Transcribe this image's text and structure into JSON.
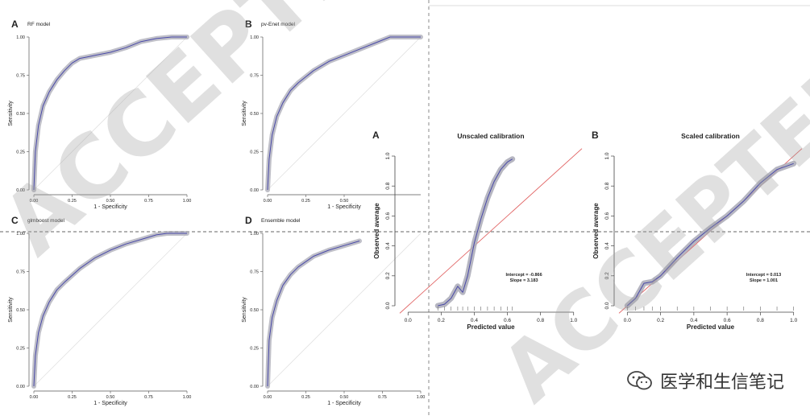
{
  "panels_left": [
    {
      "letter": "A",
      "title": "RF model",
      "xlabel": "1 - Specificity",
      "ylabel": "Sensitivity",
      "xticks": [
        "0.00",
        "0.25",
        "0.50",
        "0.75",
        "1.00"
      ],
      "yticks": [
        "0.00",
        "0.25",
        "0.50",
        "0.75",
        "1.00"
      ]
    },
    {
      "letter": "B",
      "title": "pv-Enet model",
      "xlabel": "1 - Specificity",
      "ylabel": "Sensitivity",
      "xticks": [
        "0.00",
        "0.25",
        "0.50"
      ],
      "yticks": [
        "0.00",
        "0.25",
        "0.50",
        "0.75",
        "1.00"
      ]
    },
    {
      "letter": "C",
      "title": "glmboost model",
      "xlabel": "1 - Specificity",
      "ylabel": "Sensitivity",
      "xticks": [
        "0.00",
        "0.25",
        "0.50",
        "0.75",
        "1.00"
      ],
      "yticks": [
        "0.00",
        "0.25",
        "0.50",
        "0.75",
        "1.00"
      ]
    },
    {
      "letter": "D",
      "title": "Ensemble model",
      "xlabel": "1 - Specificity",
      "ylabel": "Sensitivity",
      "xticks": [
        "0.00",
        "0.25",
        "0.50",
        "0.75",
        "1.00"
      ],
      "yticks": [
        "0.00",
        "0.25",
        "0.50",
        "0.75",
        "1.00"
      ]
    }
  ],
  "panels_right": [
    {
      "letter": "A",
      "title": "Unscaled calibration",
      "xlabel": "Predicted value",
      "ylabel": "Observed average",
      "xticks": [
        "0.0",
        "0.2",
        "0.4",
        "0.6",
        "0.8",
        "1.0"
      ],
      "yticks": [
        "0.0",
        "0.2",
        "0.4",
        "0.6",
        "0.8",
        "1.0"
      ],
      "annotation": [
        "Intercept = -0.866",
        "Slope = 3.183"
      ]
    },
    {
      "letter": "B",
      "title": "Scaled calibration",
      "xlabel": "Predicted value",
      "ylabel": "Observed average",
      "xticks": [
        "0.0",
        "0.2",
        "0.4",
        "0.6",
        "0.8",
        "1.0"
      ],
      "yticks": [
        "0.0",
        "0.2",
        "0.4",
        "0.6",
        "0.8",
        "1.0"
      ],
      "annotation": [
        "Intercept = 0.013",
        "Slope = 1.001"
      ]
    }
  ],
  "watermark": "ACCEPTED",
  "footer_text": "医学和生信笔记",
  "colors": {
    "curve": "#4a4aa8",
    "band": "#a9a9b6",
    "ref": "#e06060",
    "diag": "#e2e2e2",
    "text": "#222222"
  },
  "chart_data": [
    {
      "type": "line",
      "title": "RF model",
      "xlabel": "1 - Specificity",
      "ylabel": "Sensitivity",
      "xlim": [
        0,
        1
      ],
      "ylim": [
        0,
        1
      ],
      "grid": false,
      "series": [
        {
          "x": [
            0,
            0.01,
            0.03,
            0.06,
            0.1,
            0.15,
            0.2,
            0.25,
            0.3,
            0.35,
            0.4,
            0.5,
            0.6,
            0.7,
            0.8,
            0.9,
            1.0
          ],
          "y": [
            0,
            0.25,
            0.42,
            0.55,
            0.64,
            0.72,
            0.78,
            0.83,
            0.86,
            0.87,
            0.88,
            0.9,
            0.93,
            0.97,
            0.99,
            1.0,
            1.0
          ]
        }
      ]
    },
    {
      "type": "line",
      "title": "pv-Enet model",
      "xlabel": "1 - Specificity",
      "ylabel": "Sensitivity",
      "xlim": [
        0,
        1
      ],
      "ylim": [
        0,
        1
      ],
      "grid": false,
      "series": [
        {
          "x": [
            0,
            0.01,
            0.03,
            0.06,
            0.1,
            0.15,
            0.2,
            0.3,
            0.4,
            0.5,
            0.6,
            0.7,
            0.8,
            0.9,
            1.0
          ],
          "y": [
            0,
            0.2,
            0.36,
            0.48,
            0.57,
            0.65,
            0.7,
            0.78,
            0.84,
            0.88,
            0.92,
            0.96,
            1.0,
            1.0,
            1.0
          ]
        }
      ]
    },
    {
      "type": "line",
      "title": "glmboost model",
      "xlabel": "1 - Specificity",
      "ylabel": "Sensitivity",
      "xlim": [
        0,
        1
      ],
      "ylim": [
        0,
        1
      ],
      "grid": false,
      "series": [
        {
          "x": [
            0,
            0.01,
            0.03,
            0.06,
            0.1,
            0.15,
            0.2,
            0.3,
            0.4,
            0.5,
            0.6,
            0.7,
            0.8,
            0.87,
            1.0
          ],
          "y": [
            0,
            0.2,
            0.35,
            0.46,
            0.55,
            0.63,
            0.68,
            0.77,
            0.84,
            0.89,
            0.93,
            0.96,
            0.99,
            1.0,
            1.0
          ]
        }
      ]
    },
    {
      "type": "line",
      "title": "Ensemble model",
      "xlabel": "1 - Specificity",
      "ylabel": "Sensitivity",
      "xlim": [
        0,
        1
      ],
      "ylim": [
        0,
        1
      ],
      "grid": false,
      "series": [
        {
          "x": [
            0,
            0.01,
            0.03,
            0.06,
            0.1,
            0.15,
            0.2,
            0.3,
            0.4,
            0.5,
            0.6
          ],
          "y": [
            0,
            0.3,
            0.45,
            0.56,
            0.66,
            0.73,
            0.78,
            0.85,
            0.89,
            0.92,
            0.95
          ]
        }
      ]
    },
    {
      "type": "line",
      "title": "Unscaled calibration",
      "xlabel": "Predicted value",
      "ylabel": "Observed average",
      "xlim": [
        -0.05,
        1.05
      ],
      "ylim": [
        0,
        1
      ],
      "grid": false,
      "annotations": [
        "Intercept = -0.866",
        "Slope = 3.183"
      ],
      "series": [
        {
          "x": [
            0.18,
            0.22,
            0.26,
            0.3,
            0.33,
            0.36,
            0.4,
            0.44,
            0.48,
            0.52,
            0.56,
            0.6,
            0.63
          ],
          "y": [
            0.0,
            0.01,
            0.05,
            0.13,
            0.09,
            0.2,
            0.42,
            0.58,
            0.72,
            0.83,
            0.91,
            0.96,
            0.98
          ]
        },
        {
          "x": [
            -0.05,
            1.05
          ],
          "y": [
            -0.05,
            1.05
          ]
        }
      ]
    },
    {
      "type": "line",
      "title": "Scaled calibration",
      "xlabel": "Predicted value",
      "ylabel": "Observed average",
      "xlim": [
        -0.05,
        1.05
      ],
      "ylim": [
        0,
        1
      ],
      "grid": false,
      "annotations": [
        "Intercept = 0.013",
        "Slope = 1.001"
      ],
      "series": [
        {
          "x": [
            0,
            0.05,
            0.1,
            0.15,
            0.2,
            0.3,
            0.4,
            0.5,
            0.6,
            0.7,
            0.8,
            0.9,
            1.0
          ],
          "y": [
            0,
            0.05,
            0.15,
            0.16,
            0.2,
            0.32,
            0.43,
            0.52,
            0.6,
            0.7,
            0.82,
            0.91,
            0.95
          ]
        },
        {
          "x": [
            -0.05,
            1.05
          ],
          "y": [
            -0.05,
            1.05
          ]
        }
      ]
    }
  ]
}
